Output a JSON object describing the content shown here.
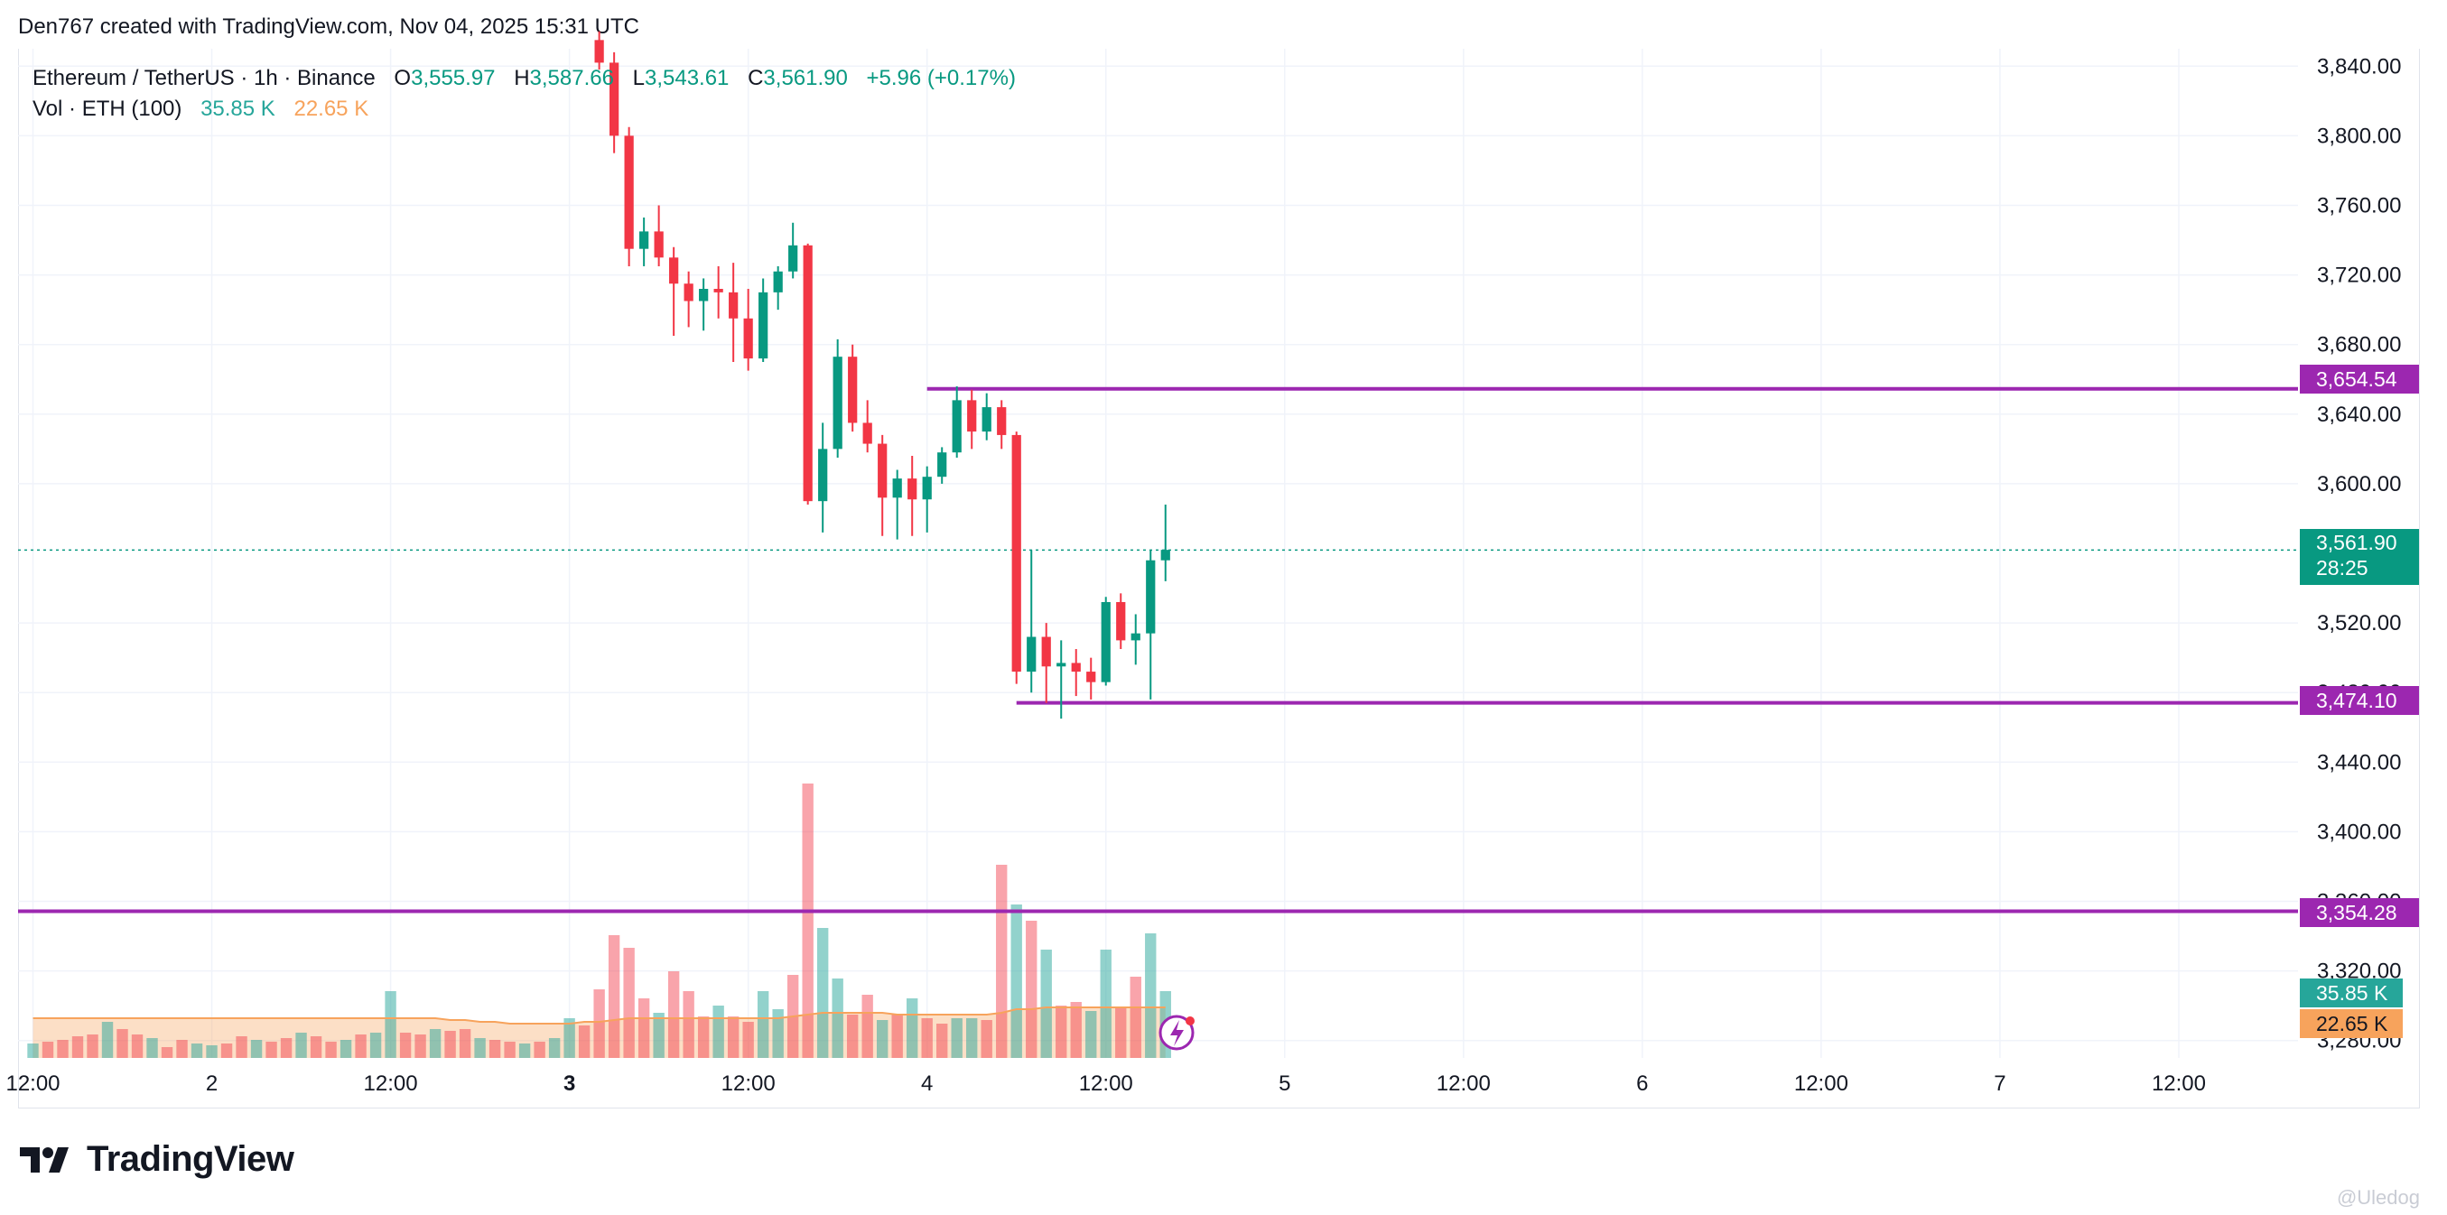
{
  "header": {
    "credit": "Den767 created with TradingView.com, Nov 04, 2025 15:31 UTC"
  },
  "legend": {
    "symbol": "Ethereum / TetherUS · 1h · Binance",
    "o_label": "O",
    "o_value": "3,555.97",
    "h_label": "H",
    "h_value": "3,587.66",
    "l_label": "L",
    "l_value": "3,543.61",
    "c_label": "C",
    "c_value": "3,561.90",
    "change": "+5.96 (+0.17%)",
    "vol_label": "Vol · ETH (100)",
    "vol_value": "35.85 K",
    "vol_ma_value": "22.65 K"
  },
  "brand": {
    "name": "TradingView"
  },
  "watermark": "@Uledog",
  "colors": {
    "up": "#089981",
    "down": "#f23645",
    "level": "#9c27b0",
    "vol_ma": "#f7a35c",
    "last_price": "#089981"
  },
  "price_tags": {
    "level_top": "3,654.54",
    "last_price": "3,561.90",
    "countdown": "28:25",
    "level_mid": "3,474.10",
    "level_low": "3,354.28",
    "volume": "35.85 K",
    "volume_ma": "22.65 K"
  },
  "chart_data": {
    "type": "candlestick",
    "symbol": "ETHUSDT",
    "interval": "1h",
    "ylim": [
      3270,
      3850
    ],
    "y_ticks": [
      {
        "value": 3840,
        "label": "3,840.00"
      },
      {
        "value": 3800,
        "label": "3,800.00"
      },
      {
        "value": 3760,
        "label": "3,760.00"
      },
      {
        "value": 3720,
        "label": "3,720.00"
      },
      {
        "value": 3680,
        "label": "3,680.00"
      },
      {
        "value": 3640,
        "label": "3,640.00"
      },
      {
        "value": 3600,
        "label": "3,600.00"
      },
      {
        "value": 3520,
        "label": "3,520.00"
      },
      {
        "value": 3480,
        "label": "3,480.00"
      },
      {
        "value": 3440,
        "label": "3,440.00"
      },
      {
        "value": 3400,
        "label": "3,400.00"
      },
      {
        "value": 3360,
        "label": "3,360.00"
      },
      {
        "value": 3320,
        "label": "3,320.00"
      },
      {
        "value": 3280,
        "label": "3,280.00"
      }
    ],
    "x_ticks": [
      {
        "index": 0,
        "label": "12:00"
      },
      {
        "index": 12,
        "label": "2"
      },
      {
        "index": 24,
        "label": "12:00"
      },
      {
        "index": 36,
        "label": "3",
        "bold": true
      },
      {
        "index": 48,
        "label": "12:00"
      },
      {
        "index": 60,
        "label": "4"
      },
      {
        "index": 72,
        "label": "12:00"
      },
      {
        "index": 84,
        "label": "5"
      },
      {
        "index": 96,
        "label": "12:00"
      },
      {
        "index": 108,
        "label": "6"
      },
      {
        "index": 120,
        "label": "12:00"
      },
      {
        "index": 132,
        "label": "7"
      },
      {
        "index": 144,
        "label": "12:00"
      }
    ],
    "x_range": [
      -1,
      152
    ],
    "candles_start_index": 38,
    "candles": [
      [
        3855,
        3860,
        3838,
        3842
      ],
      [
        3842,
        3848,
        3790,
        3800
      ],
      [
        3800,
        3805,
        3725,
        3735
      ],
      [
        3735,
        3753,
        3725,
        3745
      ],
      [
        3745,
        3760,
        3725,
        3730
      ],
      [
        3730,
        3736,
        3685,
        3715
      ],
      [
        3715,
        3722,
        3690,
        3705
      ],
      [
        3705,
        3718,
        3688,
        3712
      ],
      [
        3712,
        3725,
        3695,
        3710
      ],
      [
        3710,
        3727,
        3670,
        3695
      ],
      [
        3695,
        3712,
        3665,
        3672
      ],
      [
        3672,
        3718,
        3670,
        3710
      ],
      [
        3710,
        3725,
        3700,
        3722
      ],
      [
        3722,
        3750,
        3718,
        3737
      ],
      [
        3737,
        3738,
        3588,
        3590
      ],
      [
        3590,
        3635,
        3572,
        3620
      ],
      [
        3620,
        3683,
        3615,
        3673
      ],
      [
        3673,
        3680,
        3630,
        3635
      ],
      [
        3635,
        3648,
        3618,
        3623
      ],
      [
        3623,
        3628,
        3570,
        3592
      ],
      [
        3592,
        3608,
        3568,
        3603
      ],
      [
        3603,
        3616,
        3570,
        3591
      ],
      [
        3591,
        3610,
        3572,
        3604
      ],
      [
        3604,
        3621,
        3600,
        3618
      ],
      [
        3618,
        3656,
        3615,
        3648
      ],
      [
        3648,
        3654,
        3620,
        3630
      ],
      [
        3630,
        3652,
        3625,
        3644
      ],
      [
        3644,
        3648,
        3620,
        3628
      ],
      [
        3628,
        3630,
        3485,
        3492
      ],
      [
        3492,
        3562,
        3480,
        3512
      ],
      [
        3512,
        3520,
        3474,
        3495
      ],
      [
        3495,
        3510,
        3465,
        3497
      ],
      [
        3497,
        3505,
        3478,
        3492
      ],
      [
        3492,
        3500,
        3476,
        3486
      ],
      [
        3486,
        3535,
        3484,
        3532
      ],
      [
        3532,
        3537,
        3505,
        3510
      ],
      [
        3510,
        3525,
        3496,
        3514
      ],
      [
        3514,
        3562,
        3476,
        3556
      ],
      [
        3556,
        3588,
        3544,
        3562
      ]
    ],
    "volume_start_index": 0,
    "volume": [
      [
        8,
        "up"
      ],
      [
        9,
        "down"
      ],
      [
        10,
        "down"
      ],
      [
        12,
        "down"
      ],
      [
        13,
        "down"
      ],
      [
        20,
        "up"
      ],
      [
        16,
        "down"
      ],
      [
        13,
        "down"
      ],
      [
        11,
        "up"
      ],
      [
        6,
        "down"
      ],
      [
        10,
        "down"
      ],
      [
        8,
        "up"
      ],
      [
        7,
        "up"
      ],
      [
        8,
        "down"
      ],
      [
        12,
        "down"
      ],
      [
        10,
        "up"
      ],
      [
        9,
        "down"
      ],
      [
        11,
        "down"
      ],
      [
        14,
        "up"
      ],
      [
        12,
        "down"
      ],
      [
        9,
        "down"
      ],
      [
        10,
        "up"
      ],
      [
        13,
        "down"
      ],
      [
        14,
        "up"
      ],
      [
        37,
        "up"
      ],
      [
        14,
        "down"
      ],
      [
        13,
        "down"
      ],
      [
        16,
        "up"
      ],
      [
        15,
        "down"
      ],
      [
        16,
        "down"
      ],
      [
        11,
        "up"
      ],
      [
        10,
        "down"
      ],
      [
        9,
        "down"
      ],
      [
        8,
        "up"
      ],
      [
        9,
        "down"
      ],
      [
        11,
        "up"
      ],
      [
        22,
        "up"
      ],
      [
        18,
        "down"
      ],
      [
        38,
        "down"
      ],
      [
        68,
        "down"
      ],
      [
        61,
        "down"
      ],
      [
        33,
        "down"
      ],
      [
        25,
        "up"
      ],
      [
        48,
        "down"
      ],
      [
        37,
        "down"
      ],
      [
        23,
        "down"
      ],
      [
        29,
        "up"
      ],
      [
        23,
        "down"
      ],
      [
        20,
        "down"
      ],
      [
        37,
        "up"
      ],
      [
        27,
        "up"
      ],
      [
        46,
        "down"
      ],
      [
        152,
        "down"
      ],
      [
        72,
        "up"
      ],
      [
        44,
        "up"
      ],
      [
        24,
        "down"
      ],
      [
        35,
        "down"
      ],
      [
        21,
        "up"
      ],
      [
        24,
        "down"
      ],
      [
        33,
        "up"
      ],
      [
        22,
        "down"
      ],
      [
        19,
        "down"
      ],
      [
        22,
        "up"
      ],
      [
        22,
        "up"
      ],
      [
        21,
        "down"
      ],
      [
        107,
        "down"
      ],
      [
        85,
        "up"
      ],
      [
        76,
        "down"
      ],
      [
        60,
        "up"
      ],
      [
        29,
        "down"
      ],
      [
        31,
        "down"
      ],
      [
        26,
        "up"
      ],
      [
        60,
        "up"
      ],
      [
        28,
        "down"
      ],
      [
        45,
        "down"
      ],
      [
        69,
        "up"
      ],
      [
        37,
        "up"
      ]
    ],
    "volume_max": 160,
    "volume_ma": [
      22,
      22,
      22,
      22,
      22,
      22,
      22,
      22,
      22,
      22,
      22,
      22,
      22,
      22,
      22,
      22,
      22,
      22,
      22,
      22,
      22,
      22,
      22,
      22,
      22,
      22,
      22,
      22,
      21,
      21,
      20,
      20,
      19,
      19,
      19,
      19,
      19,
      20,
      20,
      21,
      22,
      22,
      22,
      22,
      22,
      22,
      22,
      22,
      22,
      22,
      22,
      23,
      24,
      25,
      25,
      25,
      25,
      25,
      24,
      24,
      24,
      24,
      24,
      24,
      24,
      25,
      27,
      27,
      28,
      28,
      28,
      28,
      28,
      28,
      28,
      28,
      28
    ],
    "levels": [
      {
        "value": 3654.54,
        "start_index": 60,
        "label": "3,654.54"
      },
      {
        "value": 3474.1,
        "start_index": 66,
        "label": "3,474.10"
      },
      {
        "value": 3354.28,
        "start_index": -1,
        "label": "3,354.28"
      }
    ],
    "last_price": 3561.9
  }
}
